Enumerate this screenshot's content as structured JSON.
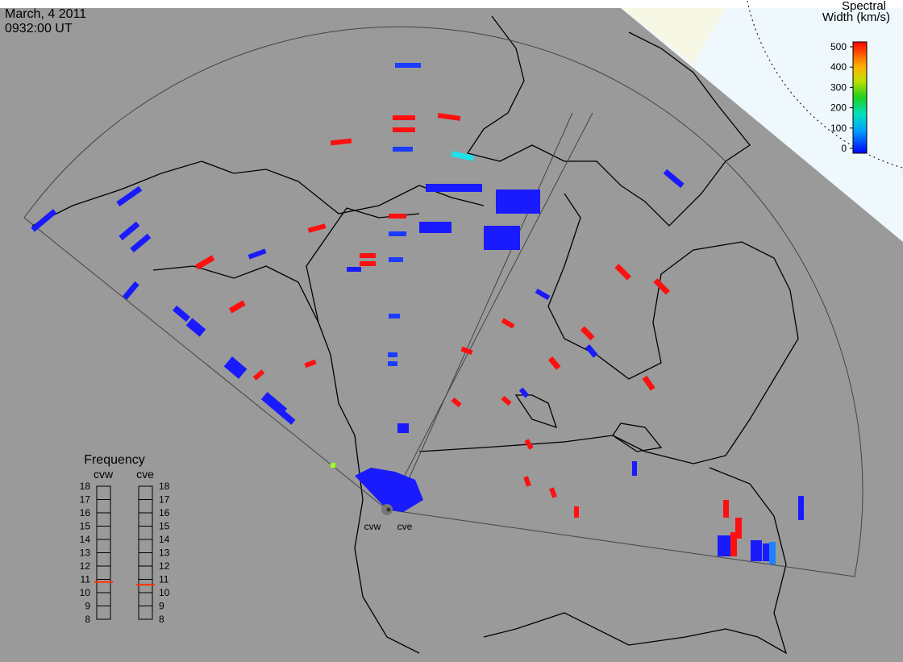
{
  "header": {
    "date": "March, 4 2011",
    "time": "0932:00 UT"
  },
  "colorbar": {
    "title": [
      "Spectral",
      "Width (km/s)"
    ],
    "range": [
      0,
      500
    ],
    "ticks": [
      0,
      100,
      200,
      300,
      400,
      500
    ]
  },
  "frequency": {
    "title": "Frequency",
    "range": [
      8,
      18
    ],
    "ticks": [
      8,
      9,
      10,
      11,
      12,
      13,
      14,
      15,
      16,
      17,
      18
    ],
    "radars": [
      {
        "name": "cvw",
        "value": 10.8
      },
      {
        "name": "cve",
        "value": 10.6
      }
    ]
  }
}
